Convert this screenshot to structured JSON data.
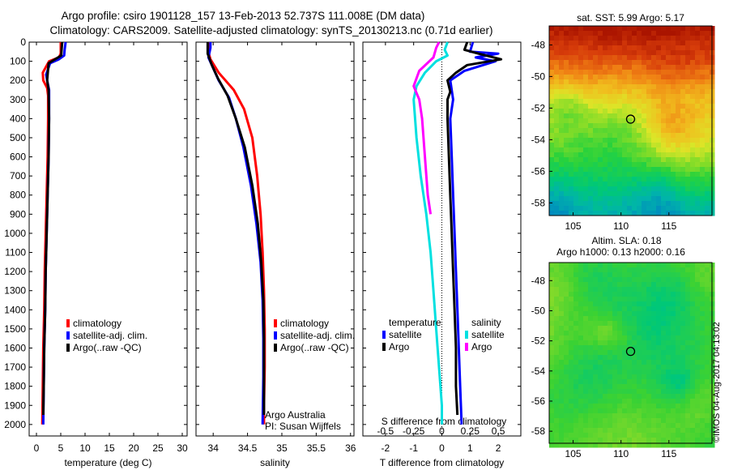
{
  "header": {
    "line1": "Argo profile: csiro 1901128_157 13-Feb-2013 52.737S 111.008E (DM data)",
    "line2": "Climatology: CARS2009. Satellite-adjusted climatology: synTS_20130213.nc (0.71d earlier)"
  },
  "depth_ticks": [
    0,
    100,
    200,
    300,
    400,
    500,
    600,
    700,
    800,
    900,
    1000,
    1100,
    1200,
    1300,
    1400,
    1500,
    1600,
    1700,
    1800,
    1900,
    2000
  ],
  "chart_data": [
    {
      "type": "line",
      "panel": "temperature",
      "xlabel": "temperature (deg C)",
      "ylabel": "",
      "xlim": [
        -1.5,
        31
      ],
      "ylim": [
        2060,
        0
      ],
      "xticks": [
        0,
        5,
        10,
        15,
        20,
        25,
        30
      ],
      "legend": [
        "climatology",
        "satellite-adj. clim.",
        "Argo(..raw -QC)"
      ],
      "legend_placement": "lower-right",
      "series": [
        {
          "name": "climatology",
          "color": "#ff0000",
          "points": [
            [
              5.0,
              0
            ],
            [
              5.0,
              60
            ],
            [
              4.6,
              80
            ],
            [
              2.6,
              100
            ],
            [
              1.3,
              160
            ],
            [
              1.4,
              200
            ],
            [
              2.2,
              240
            ],
            [
              2.4,
              280
            ],
            [
              2.4,
              400
            ],
            [
              2.3,
              600
            ],
            [
              2.1,
              800
            ],
            [
              1.9,
              1000
            ],
            [
              1.7,
              1200
            ],
            [
              1.6,
              1400
            ],
            [
              1.4,
              1600
            ],
            [
              1.3,
              1800
            ],
            [
              1.2,
              2000
            ]
          ]
        },
        {
          "name": "satellite-adj. clim.",
          "color": "#0000ff",
          "points": [
            [
              6.0,
              0
            ],
            [
              5.8,
              40
            ],
            [
              5.7,
              70
            ],
            [
              4.6,
              90
            ],
            [
              2.8,
              110
            ],
            [
              2.0,
              170
            ],
            [
              2.2,
              200
            ],
            [
              2.6,
              250
            ],
            [
              2.6,
              400
            ],
            [
              2.5,
              600
            ],
            [
              2.3,
              800
            ],
            [
              2.1,
              1000
            ],
            [
              1.9,
              1200
            ],
            [
              1.8,
              1400
            ],
            [
              1.6,
              1600
            ],
            [
              1.5,
              1800
            ],
            [
              1.4,
              2000
            ]
          ]
        },
        {
          "name": "Argo(..raw -QC)",
          "color": "#000000",
          "points": [
            [
              5.3,
              0
            ],
            [
              5.2,
              30
            ],
            [
              5.1,
              70
            ],
            [
              2.5,
              110
            ],
            [
              2.2,
              200
            ],
            [
              2.5,
              250
            ],
            [
              2.6,
              400
            ],
            [
              2.5,
              600
            ],
            [
              2.3,
              800
            ],
            [
              2.1,
              1000
            ],
            [
              1.9,
              1200
            ],
            [
              1.8,
              1400
            ],
            [
              1.6,
              1600
            ],
            [
              1.5,
              1800
            ],
            [
              1.4,
              1950
            ]
          ]
        }
      ]
    },
    {
      "type": "line",
      "panel": "salinity",
      "xlabel": "salinity",
      "ylabel": "",
      "xlim": [
        33.75,
        36.05
      ],
      "ylim": [
        2060,
        0
      ],
      "xticks": [
        34,
        34.5,
        35,
        35.5,
        36
      ],
      "legend": [
        "climatology",
        "satellite-adj. clim.",
        "Argo(..raw -QC)"
      ],
      "legend_placement": "lower-right",
      "series": [
        {
          "name": "climatology",
          "color": "#ff0000",
          "points": [
            [
              33.93,
              0
            ],
            [
              33.93,
              50
            ],
            [
              33.96,
              90
            ],
            [
              34.08,
              160
            ],
            [
              34.3,
              250
            ],
            [
              34.45,
              350
            ],
            [
              34.57,
              500
            ],
            [
              34.64,
              700
            ],
            [
              34.69,
              900
            ],
            [
              34.72,
              1100
            ],
            [
              34.74,
              1300
            ],
            [
              34.75,
              1500
            ],
            [
              34.75,
              1700
            ],
            [
              34.74,
              1900
            ],
            [
              34.74,
              2000
            ]
          ]
        },
        {
          "name": "satellite-adj. clim.",
          "color": "#0000ff",
          "points": [
            [
              33.96,
              0
            ],
            [
              33.96,
              30
            ],
            [
              33.93,
              80
            ],
            [
              33.98,
              120
            ],
            [
              34.08,
              200
            ],
            [
              34.23,
              290
            ],
            [
              34.33,
              400
            ],
            [
              34.44,
              550
            ],
            [
              34.55,
              750
            ],
            [
              34.63,
              950
            ],
            [
              34.69,
              1150
            ],
            [
              34.72,
              1350
            ],
            [
              34.73,
              1550
            ],
            [
              34.73,
              1750
            ],
            [
              34.72,
              2000
            ]
          ]
        },
        {
          "name": "Argo(..raw -QC)",
          "color": "#000000",
          "points": [
            [
              33.92,
              0
            ],
            [
              33.92,
              60
            ],
            [
              33.98,
              120
            ],
            [
              34.07,
              190
            ],
            [
              34.21,
              280
            ],
            [
              34.33,
              400
            ],
            [
              34.46,
              550
            ],
            [
              34.57,
              750
            ],
            [
              34.65,
              950
            ],
            [
              34.7,
              1150
            ],
            [
              34.73,
              1350
            ],
            [
              34.74,
              1550
            ],
            [
              34.74,
              1750
            ],
            [
              34.74,
              1950
            ]
          ]
        }
      ],
      "annotations": [
        "Argo Australia",
        "PI: Susan Wijffels"
      ]
    },
    {
      "type": "line",
      "panel": "difference",
      "xlabel": "T difference from climatology",
      "xlabel_top": "S difference from climatology",
      "xlim": [
        -2.8,
        2.8
      ],
      "ylim": [
        2060,
        0
      ],
      "xticks": [
        -2,
        -1,
        0,
        1,
        2
      ],
      "xticks_s": [
        -0.5,
        -0.25,
        0,
        0.25,
        0.5
      ],
      "legend_left_title": "temperature",
      "legend_right_title": "salinity",
      "legend_left": [
        "satellite",
        "Argo"
      ],
      "legend_right": [
        "satellite",
        "Argo"
      ],
      "series": [
        {
          "name": "satellite",
          "color": "#0000ff",
          "points": [
            [
              1.1,
              0
            ],
            [
              1.0,
              50
            ],
            [
              2.0,
              60
            ],
            [
              1.2,
              80
            ],
            [
              1.9,
              100
            ],
            [
              0.8,
              150
            ],
            [
              0.3,
              200
            ],
            [
              0.4,
              300
            ],
            [
              0.3,
              400
            ],
            [
              0.35,
              600
            ],
            [
              0.4,
              800
            ],
            [
              0.45,
              1000
            ],
            [
              0.5,
              1200
            ],
            [
              0.55,
              1400
            ],
            [
              0.6,
              1600
            ],
            [
              0.65,
              1800
            ],
            [
              0.7,
              2000
            ]
          ]
        },
        {
          "name": "Argo",
          "color": "#000000",
          "points": [
            [
              0.9,
              0
            ],
            [
              0.8,
              40
            ],
            [
              1.3,
              60
            ],
            [
              2.1,
              90
            ],
            [
              0.9,
              120
            ],
            [
              0.5,
              160
            ],
            [
              0.2,
              200
            ],
            [
              0.3,
              260
            ],
            [
              0.2,
              300
            ],
            [
              0.2,
              400
            ],
            [
              0.25,
              600
            ],
            [
              0.3,
              800
            ],
            [
              0.35,
              1000
            ],
            [
              0.4,
              1200
            ],
            [
              0.45,
              1400
            ],
            [
              0.5,
              1600
            ],
            [
              0.5,
              1800
            ],
            [
              0.55,
              1950
            ]
          ]
        },
        {
          "name": "satellite",
          "color": "#00e0e0",
          "points": [
            [
              0.2,
              0
            ],
            [
              0.1,
              40
            ],
            [
              0.2,
              70
            ],
            [
              -0.2,
              100
            ],
            [
              -0.6,
              160
            ],
            [
              -0.9,
              230
            ],
            [
              -1.0,
              300
            ],
            [
              -0.9,
              500
            ],
            [
              -0.75,
              700
            ],
            [
              -0.55,
              900
            ],
            [
              -0.4,
              1100
            ],
            [
              -0.3,
              1300
            ],
            [
              -0.2,
              1500
            ],
            [
              -0.1,
              1700
            ],
            [
              0.0,
              1900
            ],
            [
              0.0,
              2000
            ]
          ]
        },
        {
          "name": "Argo",
          "color": "#ff00ff",
          "points": [
            [
              -0.1,
              0
            ],
            [
              -0.2,
              30
            ],
            [
              -0.3,
              80
            ],
            [
              -0.8,
              150
            ],
            [
              -1.0,
              230
            ],
            [
              -0.8,
              300
            ],
            [
              -0.7,
              400
            ],
            [
              -0.6,
              600
            ],
            [
              -0.5,
              800
            ],
            [
              -0.4,
              900
            ]
          ]
        }
      ]
    },
    {
      "type": "heatmap",
      "panel": "sst-map",
      "title": "sat. SST: 5.99 Argo: 5.17",
      "xticks": [
        105,
        110,
        115
      ],
      "yticks": [
        -48,
        -50,
        -52,
        -54,
        -56,
        -58
      ],
      "xlim": [
        102.5,
        119.5
      ],
      "ylim": [
        -58.8,
        -46.8
      ],
      "marker": {
        "lon": 111.0,
        "lat": -52.7
      }
    },
    {
      "type": "heatmap",
      "panel": "sla-map",
      "title": "Altim. SLA: 0.18",
      "subtitle": "Argo h1000: 0.13 h2000: 0.16",
      "xticks": [
        105,
        110,
        115
      ],
      "yticks": [
        -48,
        -50,
        -52,
        -54,
        -56,
        -58
      ],
      "xlim": [
        102.5,
        119.5
      ],
      "ylim": [
        -58.8,
        -46.8
      ],
      "marker": {
        "lon": 111.0,
        "lat": -52.7
      }
    }
  ],
  "footer": {
    "credit": "©IMOS 04-Aug-2017 04:13:02"
  }
}
